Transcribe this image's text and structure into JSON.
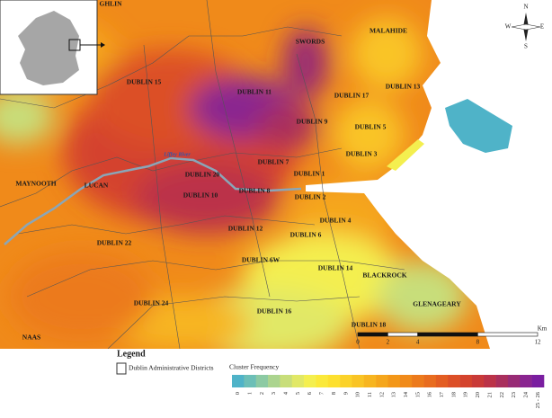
{
  "map": {
    "labels": [
      "GHLIN",
      "SWORDS",
      "MALAHIDE",
      "DUBLIN 15",
      "DUBLIN 11",
      "DUBLIN 17",
      "DUBLIN 13",
      "DUBLIN 9",
      "DUBLIN 5",
      "DUBLIN 3",
      "DUBLIN 7",
      "DUBLIN 1",
      "MAYNOOTH",
      "LUCAN",
      "DUBLIN 20",
      "DUBLIN 10",
      "DUBLIN 8",
      "DUBLIN 2",
      "DUBLIN 4",
      "DUBLIN 12",
      "DUBLIN 6",
      "DUBLIN 22",
      "DUBLIN 6W",
      "DUBLIN 14",
      "BLACKROCK",
      "GLENAGEARY",
      "DUBLIN 24",
      "DUBLIN 16",
      "DUBLIN 18",
      "NAAS"
    ],
    "river": "Liffey River"
  },
  "compass": {
    "n": "N",
    "s": "S",
    "e": "E",
    "w": "W"
  },
  "scale": {
    "ticks": [
      0,
      2,
      4,
      8,
      12
    ],
    "unit": "Km"
  },
  "legend": {
    "title": "Legend",
    "districts": "Dublin Administrative Districts",
    "colorbar_title": "Cluster Frequency",
    "ticks": [
      0,
      1,
      2,
      3,
      4,
      5,
      6,
      7,
      8,
      9,
      10,
      11,
      12,
      13,
      14,
      15,
      16,
      17,
      18,
      19,
      20,
      21,
      22,
      23,
      24,
      "25 - 26"
    ],
    "colors": [
      "#4fb3c8",
      "#6cbfb7",
      "#8ccaa3",
      "#abd48f",
      "#c8de7a",
      "#e1e866",
      "#f4ef4f",
      "#fbe93a",
      "#fde02f",
      "#fbd22a",
      "#f9c425",
      "#f7b520",
      "#f5a61c",
      "#f39718",
      "#f08a1a",
      "#ec7a1c",
      "#e86c1f",
      "#e35d22",
      "#dc4f27",
      "#d4432d",
      "#c93a38",
      "#bb3348",
      "#a92f5d",
      "#982b75",
      "#8a2590",
      "#7a1ea0"
    ]
  }
}
